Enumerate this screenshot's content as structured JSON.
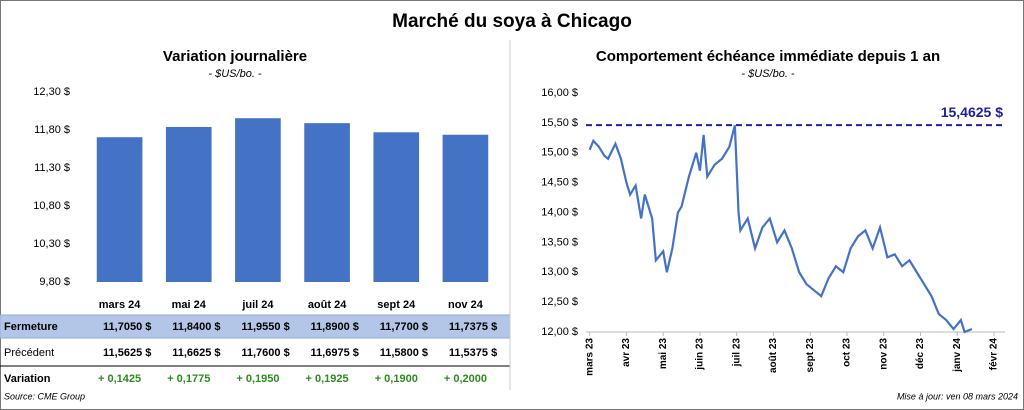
{
  "title": "Marché du soya à Chicago",
  "chart_data": [
    {
      "type": "bar",
      "title": "Variation journalière",
      "subtitle": "- $US/bo. -",
      "categories": [
        "mars 24",
        "mai 24",
        "juil 24",
        "août 24",
        "sept 24",
        "nov 24"
      ],
      "series": [
        {
          "name": "Fermeture",
          "color": "#4472c4",
          "values": [
            11.705,
            11.84,
            11.955,
            11.89,
            11.77,
            11.7375
          ],
          "value_labels": [
            "11,7050 $",
            "11,8400 $",
            "11,9550 $",
            "11,8900 $",
            "11,7700 $",
            "11,7375 $"
          ]
        }
      ],
      "ylim": [
        9.8,
        12.3
      ],
      "yticks": [
        {
          "value": 9.8,
          "label": "9,80 $"
        },
        {
          "value": 10.3,
          "label": "10,30 $"
        },
        {
          "value": 10.8,
          "label": "10,80 $"
        },
        {
          "value": 11.3,
          "label": "11,30 $"
        },
        {
          "value": 11.8,
          "label": "11,80 $"
        },
        {
          "value": 12.3,
          "label": "12,30 $"
        }
      ],
      "grid": false
    },
    {
      "type": "line",
      "title": "Comportement  échéance immédiate depuis 1 an",
      "subtitle": "- $US/bo. -",
      "x": [
        0,
        0.1,
        0.25,
        0.4,
        0.5,
        0.7,
        0.85,
        1.0,
        1.1,
        1.25,
        1.4,
        1.5,
        1.7,
        1.8,
        2.0,
        2.1,
        2.25,
        2.4,
        2.5,
        2.7,
        2.9,
        3.0,
        3.1,
        3.2,
        3.4,
        3.6,
        3.8,
        3.95,
        4.05,
        4.1,
        4.3,
        4.5,
        4.7,
        4.9,
        5.1,
        5.3,
        5.5,
        5.7,
        5.9,
        6.1,
        6.3,
        6.5,
        6.7,
        6.9,
        7.1,
        7.3,
        7.5,
        7.7,
        7.9,
        8.1,
        8.3,
        8.5,
        8.7,
        8.9,
        9.1,
        9.3,
        9.5,
        9.7,
        9.9,
        10.1,
        10.2,
        10.4
      ],
      "series": [
        {
          "name": "Échéance immédiate",
          "color": "#4472c4",
          "values": [
            15.05,
            15.2,
            15.1,
            14.95,
            14.9,
            15.15,
            14.9,
            14.5,
            14.3,
            14.45,
            13.9,
            14.3,
            13.9,
            13.2,
            13.35,
            13.0,
            13.4,
            14.0,
            14.1,
            14.6,
            15.0,
            14.7,
            15.3,
            14.6,
            14.8,
            14.9,
            15.1,
            15.46,
            14.0,
            13.7,
            13.9,
            13.4,
            13.75,
            13.9,
            13.5,
            13.7,
            13.4,
            13.0,
            12.8,
            12.7,
            12.6,
            12.9,
            13.1,
            13.0,
            13.4,
            13.6,
            13.7,
            13.4,
            13.75,
            13.25,
            13.3,
            13.1,
            13.2,
            13.0,
            12.8,
            12.6,
            12.3,
            12.2,
            12.05,
            12.2,
            12.0,
            12.05
          ]
        }
      ],
      "xlim": [
        -0.1,
        11.3
      ],
      "xticks": [
        {
          "value": 0,
          "label": "mars 23"
        },
        {
          "value": 1,
          "label": "avr 23"
        },
        {
          "value": 2,
          "label": "mai 23"
        },
        {
          "value": 3,
          "label": "juin 23"
        },
        {
          "value": 4,
          "label": "juil 23"
        },
        {
          "value": 5,
          "label": "août 23"
        },
        {
          "value": 6,
          "label": "sept 23"
        },
        {
          "value": 7,
          "label": "oct 23"
        },
        {
          "value": 8,
          "label": "nov 23"
        },
        {
          "value": 9,
          "label": "déc 23"
        },
        {
          "value": 10,
          "label": "janv 24"
        },
        {
          "value": 11,
          "label": "févr 24"
        }
      ],
      "ylim": [
        12,
        16
      ],
      "yticks": [
        {
          "value": 12,
          "label": "12,00 $"
        },
        {
          "value": 12.5,
          "label": "12,50 $"
        },
        {
          "value": 13,
          "label": "13,00 $"
        },
        {
          "value": 13.5,
          "label": "13,50 $"
        },
        {
          "value": 14,
          "label": "14,00 $"
        },
        {
          "value": 14.5,
          "label": "14,50 $"
        },
        {
          "value": 15,
          "label": "15,00 $"
        },
        {
          "value": 15.5,
          "label": "15,50 $"
        },
        {
          "value": 16,
          "label": "16,00 $"
        }
      ],
      "reference": {
        "value": 15.4625,
        "label": "15,4625 $",
        "color": "#1f1f9e"
      },
      "grid": false
    }
  ],
  "table": {
    "rows": [
      {
        "label": "Précédent",
        "cells": [
          "11,5625 $",
          "11,6625 $",
          "11,7600 $",
          "11,6975 $",
          "11,5800 $",
          "11,5375 $"
        ]
      },
      {
        "label": "Variation",
        "cells": [
          "+ 0,1425",
          "+ 0,1775",
          "+ 0,1950",
          "+ 0,1925",
          "+ 0,1900",
          "+ 0,2000"
        ]
      }
    ]
  },
  "footer": {
    "source": "Source: CME Group",
    "updated": "Mise à jour: ven 08 mars 2024"
  }
}
